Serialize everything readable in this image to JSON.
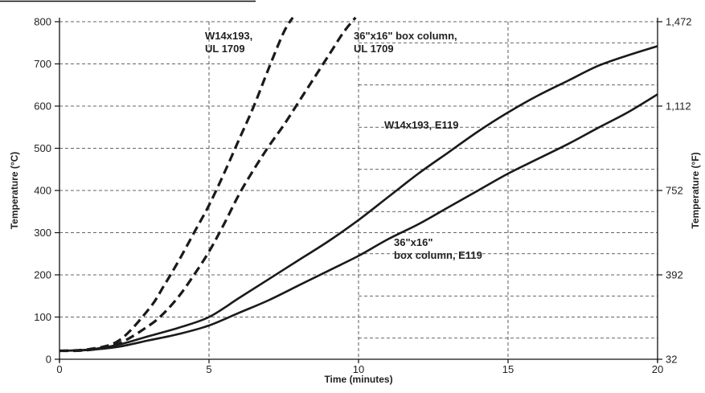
{
  "chart_data": {
    "type": "line",
    "xlabel": "Time (minutes)",
    "ylabel": "Temperature (°C)",
    "ylabel_right": "Temperature (°F)",
    "xlim": [
      0,
      20
    ],
    "ylim": [
      0,
      800
    ],
    "x_ticks": [
      0,
      5,
      10,
      15,
      20
    ],
    "y_ticks": [
      0,
      100,
      200,
      300,
      400,
      500,
      600,
      700,
      800
    ],
    "y_right_ticks": [
      {
        "value_c": 0,
        "label": "32"
      },
      {
        "value_c": 200,
        "label": "392"
      },
      {
        "value_c": 400,
        "label": "752"
      },
      {
        "value_c": 600,
        "label": "1,112"
      },
      {
        "value_c": 800,
        "label": "1,472"
      }
    ],
    "x_grid": [
      5,
      10,
      15
    ],
    "y_grid": [
      100,
      200,
      300,
      400,
      500,
      600,
      700,
      800
    ],
    "y_grid_right_extra": [
      50,
      150,
      250,
      350,
      450,
      550,
      650,
      750
    ],
    "grid": true,
    "series": [
      {
        "name": "W14x193,\nUL 1709",
        "style": "dashed",
        "points": [
          [
            0,
            20
          ],
          [
            1,
            24
          ],
          [
            2,
            45
          ],
          [
            3,
            120
          ],
          [
            3.5,
            175
          ],
          [
            4,
            235
          ],
          [
            4.5,
            300
          ],
          [
            5,
            365
          ],
          [
            5.5,
            440
          ],
          [
            6,
            520
          ],
          [
            6.5,
            600
          ],
          [
            7,
            690
          ],
          [
            7.5,
            775
          ],
          [
            7.8,
            810
          ]
        ]
      },
      {
        "name": "36\"x16\" box column,\nUL 1709",
        "style": "dashed",
        "points": [
          [
            0,
            20
          ],
          [
            1,
            22
          ],
          [
            2,
            38
          ],
          [
            3,
            80
          ],
          [
            3.5,
            110
          ],
          [
            4,
            150
          ],
          [
            4.5,
            200
          ],
          [
            5,
            255
          ],
          [
            5.5,
            320
          ],
          [
            6,
            390
          ],
          [
            6.5,
            450
          ],
          [
            7,
            505
          ],
          [
            7.5,
            555
          ],
          [
            8,
            610
          ],
          [
            8.5,
            665
          ],
          [
            9,
            720
          ],
          [
            9.5,
            775
          ],
          [
            9.9,
            810
          ]
        ]
      },
      {
        "name": "W14x193, E119",
        "style": "solid",
        "points": [
          [
            0,
            20
          ],
          [
            1,
            23
          ],
          [
            2,
            35
          ],
          [
            3,
            55
          ],
          [
            4,
            75
          ],
          [
            5,
            100
          ],
          [
            6,
            145
          ],
          [
            7,
            190
          ],
          [
            8,
            235
          ],
          [
            9,
            280
          ],
          [
            10,
            330
          ],
          [
            11,
            385
          ],
          [
            12,
            440
          ],
          [
            13,
            490
          ],
          [
            14,
            540
          ],
          [
            15,
            585
          ],
          [
            16,
            625
          ],
          [
            17,
            660
          ],
          [
            18,
            695
          ],
          [
            19,
            720
          ],
          [
            20,
            742
          ]
        ]
      },
      {
        "name": "36\"x16\"\nbox column, E119",
        "style": "solid",
        "points": [
          [
            0,
            20
          ],
          [
            1,
            22
          ],
          [
            2,
            30
          ],
          [
            3,
            45
          ],
          [
            4,
            60
          ],
          [
            5,
            80
          ],
          [
            6,
            110
          ],
          [
            7,
            140
          ],
          [
            8,
            175
          ],
          [
            9,
            210
          ],
          [
            10,
            245
          ],
          [
            11,
            285
          ],
          [
            12,
            320
          ],
          [
            13,
            360
          ],
          [
            14,
            400
          ],
          [
            15,
            440
          ],
          [
            16,
            475
          ],
          [
            17,
            510
          ],
          [
            18,
            548
          ],
          [
            19,
            585
          ],
          [
            20,
            628
          ]
        ]
      }
    ],
    "annotations": [
      {
        "lines": [
          "W14x193,",
          "UL 1709"
        ]
      },
      {
        "lines": [
          "36\"x16\" box column,",
          "UL 1709"
        ]
      },
      {
        "lines": [
          "W14x193, E119"
        ]
      },
      {
        "lines": [
          "36\"x16\"",
          "box column, E119"
        ]
      }
    ]
  }
}
